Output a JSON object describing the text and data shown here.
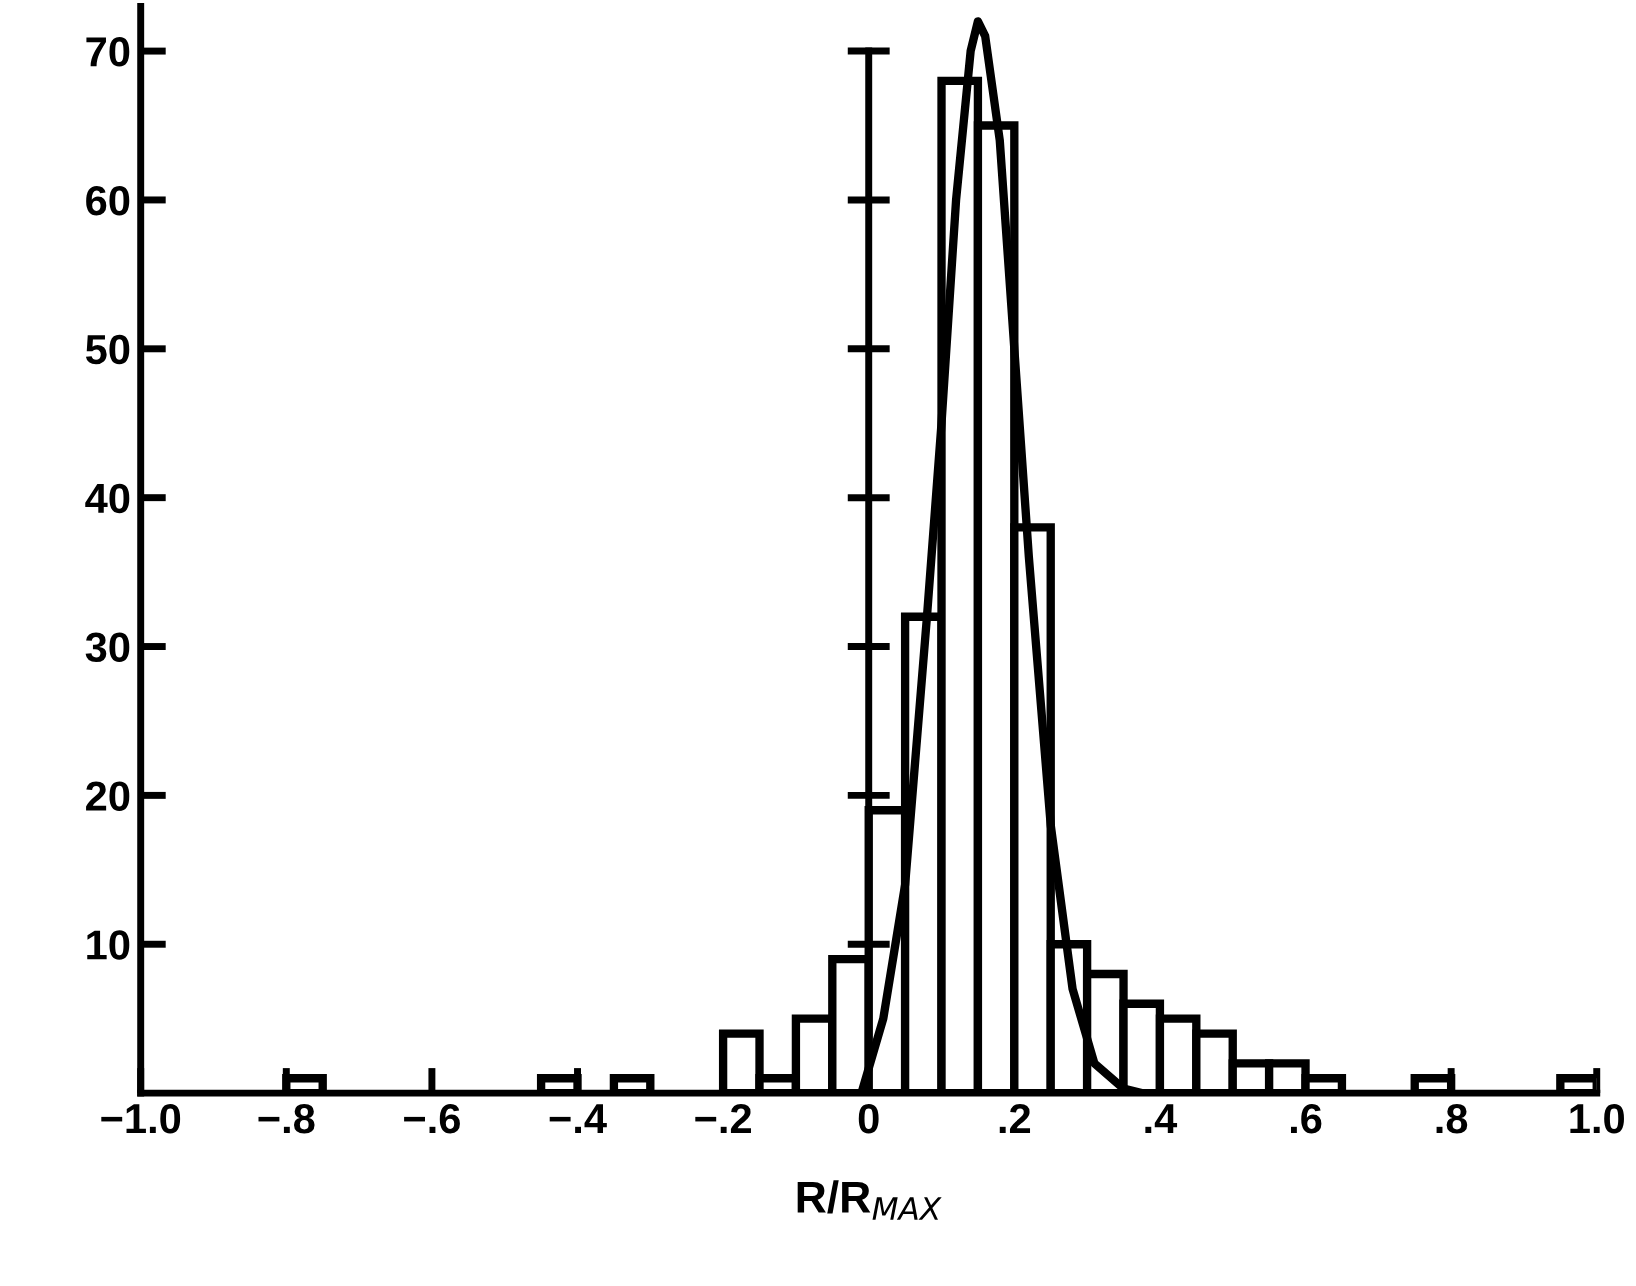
{
  "chart_data": {
    "type": "histogram",
    "xlabel": "R/R$_{MAX}$",
    "bins": [
      -1.0,
      -0.95,
      -0.9,
      -0.85,
      -0.8,
      -0.75,
      -0.7,
      -0.65,
      -0.6,
      -0.55,
      -0.5,
      -0.45,
      -0.4,
      -0.35,
      -0.3,
      -0.25,
      -0.2,
      -0.15,
      -0.1,
      -0.05,
      0.0,
      0.05,
      0.1,
      0.15,
      0.2,
      0.25,
      0.3,
      0.35,
      0.4,
      0.45,
      0.5,
      0.55,
      0.6,
      0.65,
      0.7,
      0.75,
      0.8,
      0.85,
      0.9,
      0.95,
      1.0
    ],
    "values": [
      0,
      0,
      0,
      0,
      1,
      0,
      0,
      0,
      0,
      0,
      0,
      1,
      0,
      1,
      0,
      0,
      4,
      1,
      5,
      9,
      19,
      32,
      68,
      65,
      38,
      10,
      8,
      6,
      5,
      4,
      2,
      2,
      1,
      0,
      0,
      1,
      0,
      0,
      0,
      1
    ],
    "color": "#ffffff",
    "series": [
      {
        "type": "line",
        "color": "#000000",
        "x": [
          -0.01,
          0.02,
          0.05,
          0.08,
          0.1,
          0.12,
          0.14,
          0.15,
          0.16,
          0.18,
          0.2,
          0.22,
          0.25,
          0.28,
          0.31,
          0.35,
          0.375
        ],
        "values": [
          0,
          5,
          14,
          32,
          45,
          60,
          70,
          72,
          71,
          64,
          50,
          36,
          18,
          7,
          2,
          0.3,
          0
        ]
      }
    ],
    "ref_lines": [
      {
        "axis": "x",
        "value": 0,
        "color": "#000000"
      }
    ],
    "xlim": [
      -1.0,
      1.0
    ],
    "ylim": [
      0,
      73
    ],
    "xticks": [
      {
        "value": -1.0,
        "label": "−1.0"
      },
      {
        "value": -0.8,
        "label": "−.8"
      },
      {
        "value": -0.6,
        "label": "−.6"
      },
      {
        "value": -0.4,
        "label": "−.4"
      },
      {
        "value": -0.2,
        "label": "−.2"
      },
      {
        "value": 0,
        "label": "0"
      },
      {
        "value": 0.2,
        "label": ".2"
      },
      {
        "value": 0.4,
        "label": ".4"
      },
      {
        "value": 0.6,
        "label": ".6"
      },
      {
        "value": 0.8,
        "label": ".8"
      },
      {
        "value": 1.0,
        "label": "1.0"
      }
    ],
    "yticks": [
      10,
      20,
      30,
      40,
      50,
      60,
      70
    ],
    "grid": false,
    "legend": false
  }
}
